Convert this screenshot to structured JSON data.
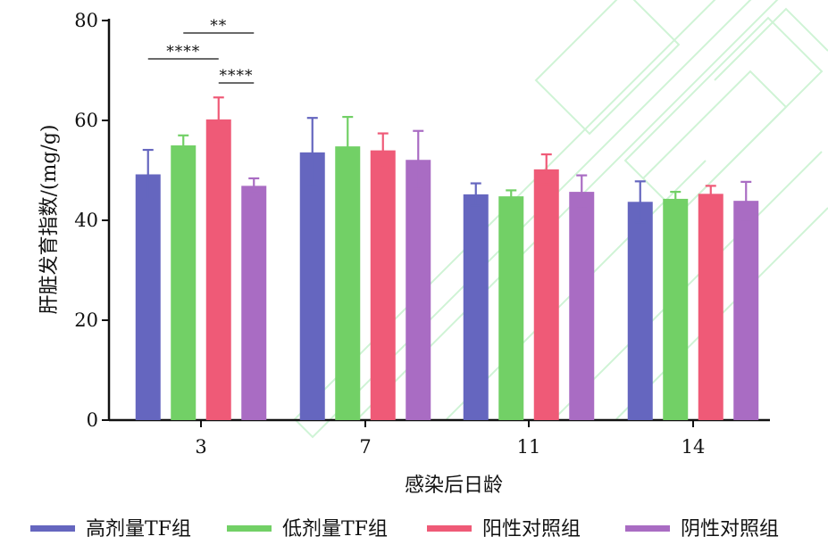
{
  "chart_data": {
    "type": "bar",
    "categories": [
      "3",
      "7",
      "11",
      "14"
    ],
    "xlabel": "感染后日龄",
    "ylabel": "肝脏发育指数/(mg/g)",
    "ylim": [
      0,
      80
    ],
    "yticks": [
      "0",
      "20",
      "40",
      "60",
      "80"
    ],
    "grid": false,
    "legend_position": "bottom",
    "series": [
      {
        "name": "高剂量TF组",
        "color": "#6566bf",
        "values": [
          49.2,
          53.6,
          45.2,
          43.7
        ],
        "errors": [
          4.9,
          6.9,
          2.2,
          4.1
        ]
      },
      {
        "name": "低剂量TF组",
        "color": "#72d066",
        "values": [
          55.0,
          54.8,
          44.8,
          44.3
        ],
        "errors": [
          2.0,
          5.9,
          1.2,
          1.4
        ]
      },
      {
        "name": "阳性对照组",
        "color": "#ef5a77",
        "values": [
          60.2,
          54.0,
          50.2,
          45.3
        ],
        "errors": [
          4.4,
          3.4,
          3.0,
          1.6
        ]
      },
      {
        "name": "阴性对照组",
        "color": "#a96cc3",
        "values": [
          46.9,
          52.1,
          45.7,
          43.9
        ],
        "errors": [
          1.5,
          5.8,
          3.3,
          3.8
        ]
      }
    ],
    "significance": [
      {
        "label": "**",
        "category": "3",
        "from_series": 1,
        "to_series": 3
      },
      {
        "label": "****",
        "category": "3",
        "from_series": 0,
        "to_series": 2
      },
      {
        "label": "****",
        "category": "3",
        "from_series": 2,
        "to_series": 3
      }
    ]
  }
}
